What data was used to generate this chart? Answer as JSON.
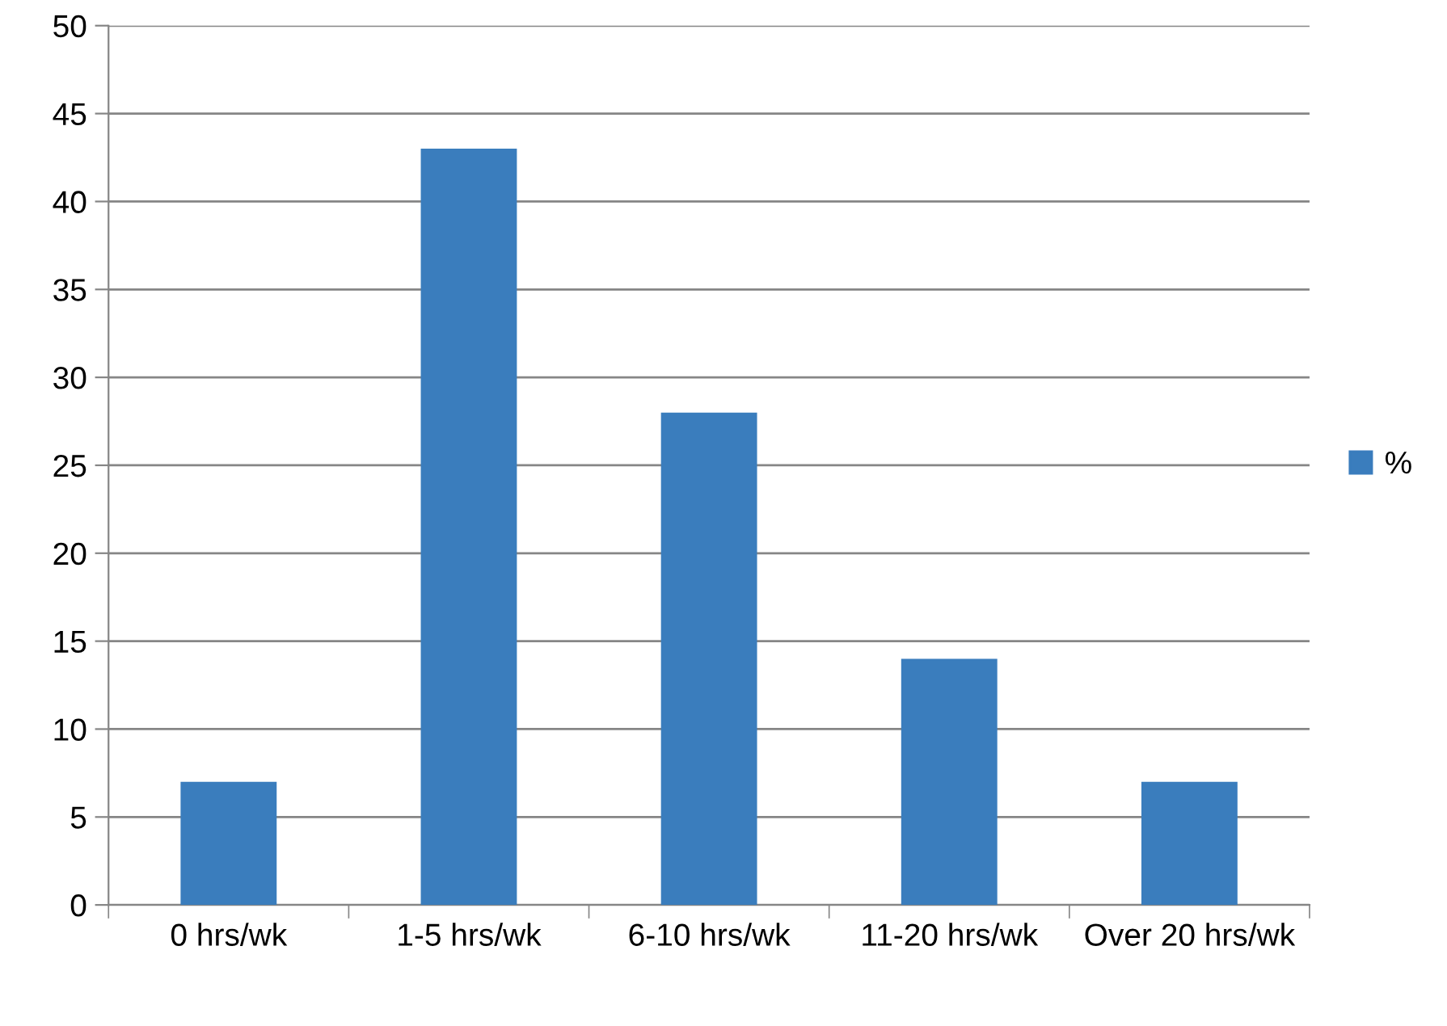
{
  "chart_data": {
    "type": "bar",
    "categories": [
      "0 hrs/wk",
      "1-5 hrs/wk",
      "6-10 hrs/wk",
      "11-20 hrs/wk",
      "Over 20 hrs/wk"
    ],
    "series": [
      {
        "name": "%",
        "color": "#3a7dbd",
        "values": [
          7,
          43,
          28,
          14,
          7
        ]
      }
    ],
    "ylim": [
      0,
      50
    ],
    "yticks": [
      0,
      5,
      10,
      15,
      20,
      25,
      30,
      35,
      40,
      45,
      50
    ],
    "grid": "y",
    "legend": "right"
  }
}
